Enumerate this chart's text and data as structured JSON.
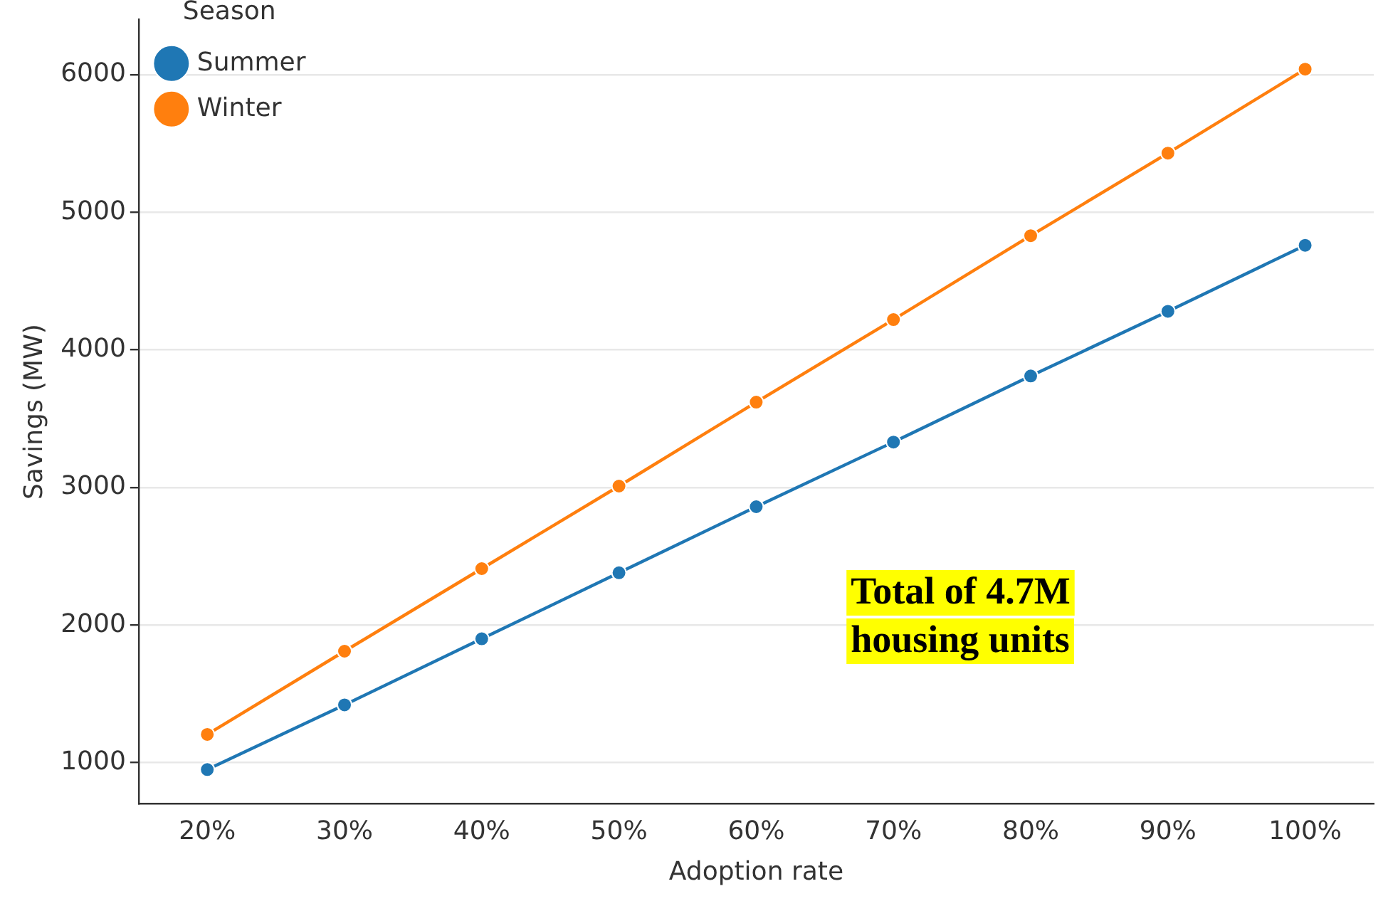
{
  "chart_data": {
    "type": "line",
    "xlabel": "Adoption rate",
    "ylabel": "Savings (MW)",
    "legend_title": "Season",
    "categories": [
      "20%",
      "30%",
      "40%",
      "50%",
      "60%",
      "70%",
      "80%",
      "90%",
      "100%"
    ],
    "series": [
      {
        "name": "Summer",
        "color": "#1f77b4",
        "values": [
          950,
          1420,
          1900,
          2380,
          2860,
          3330,
          3810,
          4280,
          4760
        ]
      },
      {
        "name": "Winter",
        "color": "#ff7f0e",
        "values": [
          1205,
          1810,
          2410,
          3010,
          3620,
          4220,
          4830,
          5430,
          6040
        ]
      }
    ],
    "ylim": [
      700,
      6400
    ],
    "yticks": [
      1000,
      2000,
      3000,
      4000,
      5000,
      6000
    ],
    "grid": "y",
    "legend": "top left",
    "marker": "circle",
    "line_style": "solid",
    "annotations": [
      "Total of 4.7M\nhousing units"
    ]
  }
}
